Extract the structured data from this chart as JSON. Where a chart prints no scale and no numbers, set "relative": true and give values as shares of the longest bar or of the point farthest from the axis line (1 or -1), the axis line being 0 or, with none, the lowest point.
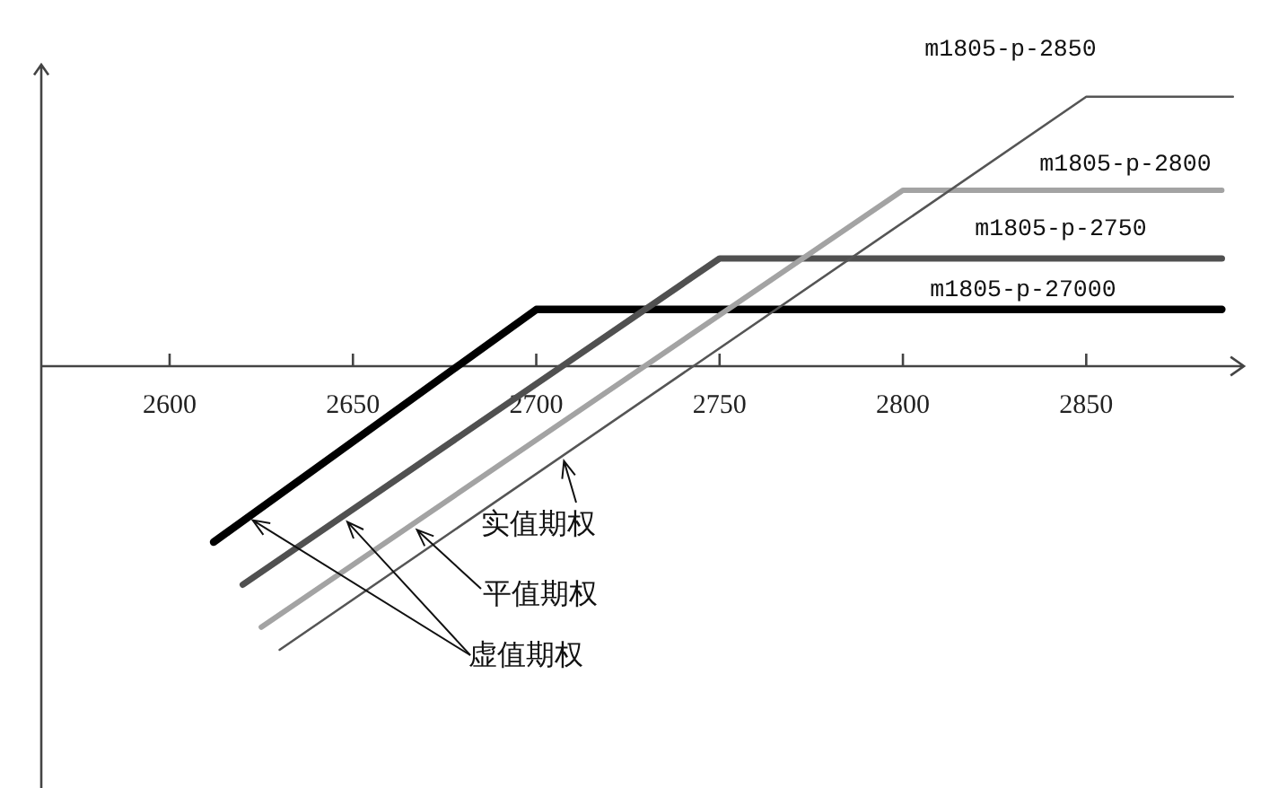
{
  "chart_data": {
    "type": "line",
    "relative": true,
    "line_style": "solid",
    "xlim": [
      2565,
      2893
    ],
    "xticks": [
      2600,
      2650,
      2700,
      2750,
      2800,
      2850
    ],
    "series": [
      {
        "name": "m1805-p-27000",
        "color": "#000000",
        "x": [
          2612,
          2700,
          2887
        ],
        "values": [
          -0.62,
          0.2,
          0.2
        ]
      },
      {
        "name": "m1805-p-2750",
        "color": "#505050",
        "x": [
          2620,
          2750,
          2887
        ],
        "values": [
          -0.77,
          0.38,
          0.38
        ]
      },
      {
        "name": "m1805-p-2800",
        "color": "#a3a3a3",
        "x": [
          2625,
          2800,
          2887
        ],
        "values": [
          -0.92,
          0.62,
          0.62
        ]
      },
      {
        "name": "m1805-p-2850",
        "color": "#555555",
        "x": [
          2630,
          2850,
          2890
        ],
        "values": [
          -1,
          0.95,
          0.95
        ]
      }
    ],
    "annotations": [
      {
        "text": "实值期权",
        "x": 2707,
        "y": -0.31
      },
      {
        "text": "平值期权",
        "x": 2666,
        "y": -0.56
      },
      {
        "text": "虚值期权",
        "x": 2621,
        "y": -0.53
      }
    ]
  }
}
